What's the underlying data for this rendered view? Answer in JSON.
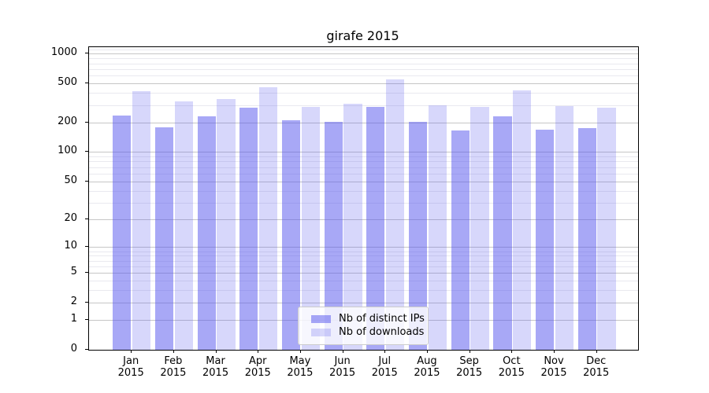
{
  "title": "girafe 2015",
  "chart_data": {
    "type": "bar",
    "title": "girafe 2015",
    "categories": [
      "Jan",
      "Feb",
      "Mar",
      "Apr",
      "May",
      "Jun",
      "Jul",
      "Aug",
      "Sep",
      "Oct",
      "Nov",
      "Dec"
    ],
    "xlabel_year": "2015",
    "series": [
      {
        "name": "Nb of distinct IPs",
        "color": "rgba(85,85,238,0.51)",
        "values": [
          235,
          178,
          230,
          285,
          210,
          205,
          290,
          205,
          165,
          230,
          170,
          176
        ]
      },
      {
        "name": "Nb of downloads",
        "color": "rgba(85,85,238,0.235)",
        "values": [
          415,
          330,
          350,
          460,
          290,
          310,
          550,
          300,
          290,
          425,
          295,
          285
        ]
      }
    ],
    "yscale": "log1p",
    "ylim": [
      0,
      1170
    ],
    "yticks": [
      0,
      1,
      2,
      5,
      10,
      20,
      50,
      100,
      200,
      500,
      1000
    ],
    "ytick_labels": [
      "0",
      "1",
      "2",
      "5",
      "10",
      "20",
      "50",
      "100",
      "200",
      "500",
      "1000"
    ],
    "minor_gridlines": [
      3,
      4,
      6,
      7,
      8,
      9,
      30,
      40,
      60,
      70,
      80,
      90,
      300,
      400,
      600,
      700,
      800,
      900,
      1100
    ],
    "grid": true,
    "legend_position": "lower center",
    "colors": {
      "major_grid": "#c6c6c6",
      "minor_grid": "#e9e9ef",
      "spine": "#000000",
      "text": "#000000",
      "legend_border": "#cccccc"
    }
  }
}
